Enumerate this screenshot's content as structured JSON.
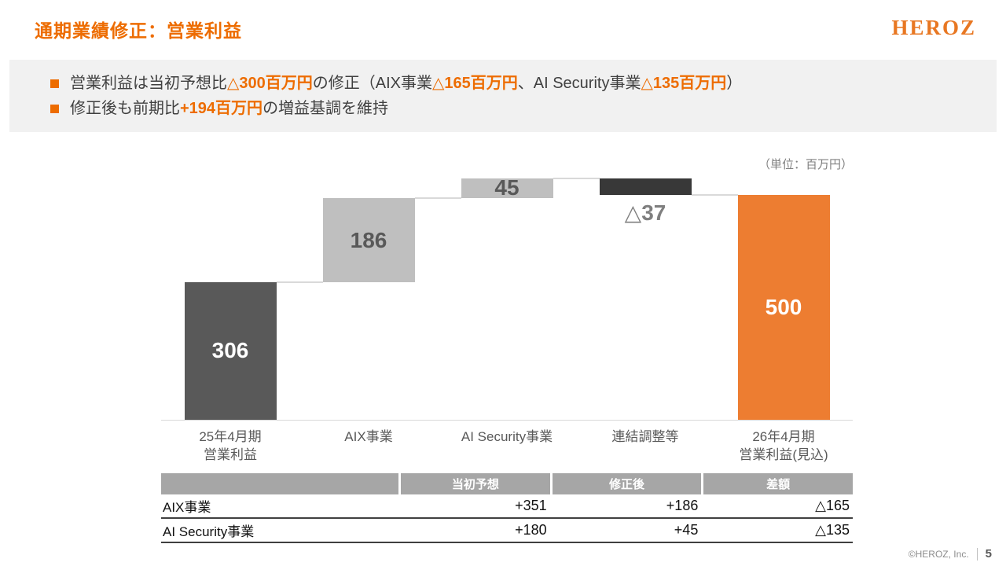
{
  "colors": {
    "accent": "#ED6C00",
    "bar_orange": "#ED7D31",
    "bar_dark_gray": "#595959",
    "bar_light_gray": "#BFBFBF",
    "bar_black": "#383838",
    "connector": "#D9D9D9"
  },
  "header": {
    "title": "通期業績修正：営業利益",
    "logo": "HEROZ"
  },
  "banner": {
    "bullets": [
      {
        "segments": [
          {
            "text": "営業利益は当初予想比",
            "highlight": false
          },
          {
            "text": "△300百万円",
            "highlight": true
          },
          {
            "text": "の修正（AIX事業",
            "highlight": false
          },
          {
            "text": "△165百万円",
            "highlight": true
          },
          {
            "text": "、AI Security事業",
            "highlight": false
          },
          {
            "text": "△135百万円",
            "highlight": true
          },
          {
            "text": "）",
            "highlight": false
          }
        ]
      },
      {
        "segments": [
          {
            "text": "修正後も前期比",
            "highlight": false
          },
          {
            "text": "+194百万円",
            "highlight": true
          },
          {
            "text": "の増益基調を維持",
            "highlight": false
          }
        ]
      }
    ]
  },
  "chart_data": {
    "type": "waterfall",
    "unit_label": "（単位：百万円）",
    "ylim": [
      0,
      545
    ],
    "connector_color": "#D9D9D9",
    "bars": [
      {
        "label": "25年4月期\n営業利益",
        "kind": "total",
        "value": 306,
        "display": "306",
        "color": "#595959",
        "value_label_color": "#ffffff",
        "value_label_position": "inside"
      },
      {
        "label": "AIX事業",
        "kind": "delta",
        "value": 186,
        "display": "186",
        "color": "#BFBFBF",
        "value_label_color": "#595959",
        "value_label_position": "inside"
      },
      {
        "label": "AI Security事業",
        "kind": "delta",
        "value": 45,
        "display": "45",
        "color": "#BFBFBF",
        "value_label_color": "#595959",
        "value_label_position": "inside"
      },
      {
        "label": "連結調整等",
        "kind": "delta",
        "value": -37,
        "display": "△37",
        "color": "#383838",
        "value_label_color": "#7F7F7F",
        "value_label_position": "below"
      },
      {
        "label": "26年4月期\n営業利益(見込)",
        "kind": "total",
        "value": 500,
        "display": "500",
        "color": "#ED7D31",
        "value_label_color": "#ffffff",
        "value_label_position": "inside"
      }
    ]
  },
  "table": {
    "headers": [
      "",
      "当初予想",
      "修正後",
      "差額"
    ],
    "rows": [
      {
        "label": "AIX事業",
        "initial": "+351",
        "revised": "+186",
        "diff": "△165"
      },
      {
        "label": "AI Security事業",
        "initial": "+180",
        "revised": "+45",
        "diff": "△135"
      }
    ]
  },
  "footer": {
    "copyright": "©HEROZ, Inc.",
    "page": "5"
  }
}
